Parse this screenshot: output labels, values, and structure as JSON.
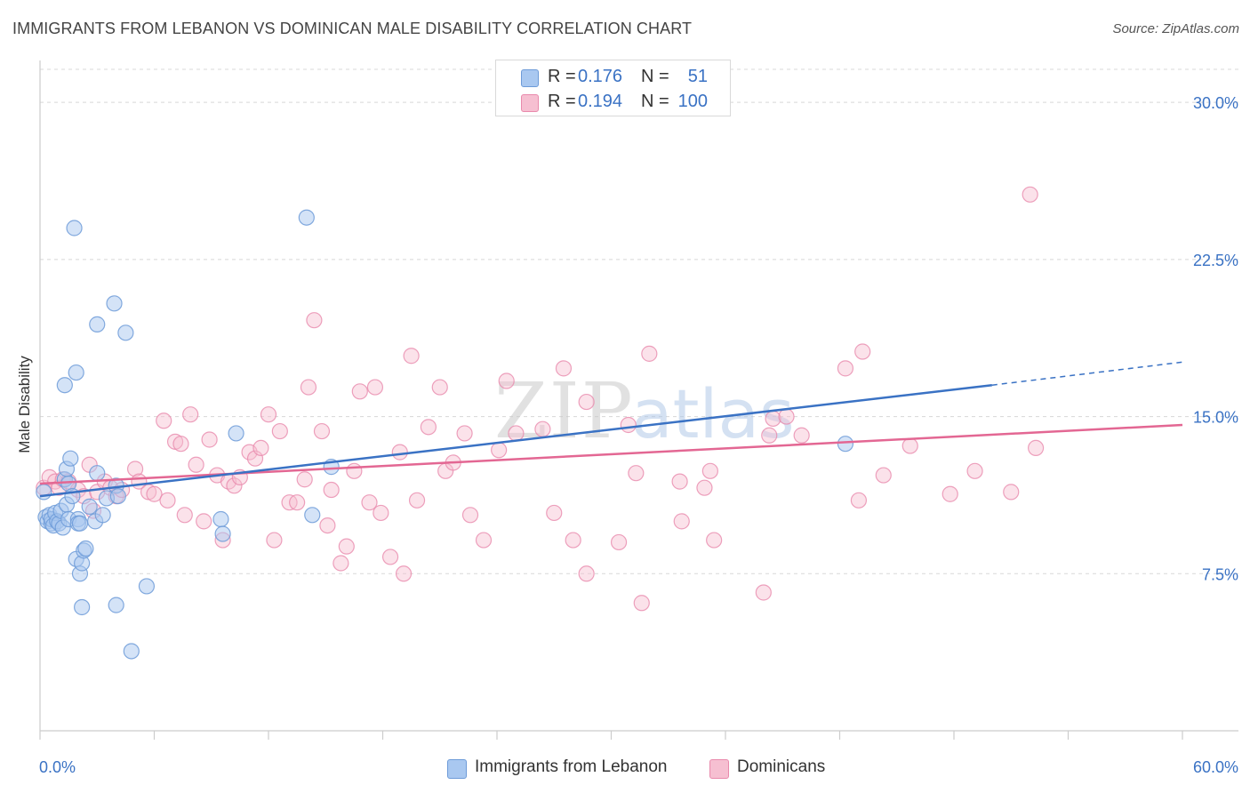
{
  "title": "IMMIGRANTS FROM LEBANON VS DOMINICAN MALE DISABILITY CORRELATION CHART",
  "source": "Source: ZipAtlas.com",
  "watermark": {
    "zip": "ZIP",
    "atlas": "atlas"
  },
  "legend": {
    "rows": [
      {
        "r_label": "R =",
        "r_value": "0.176",
        "n_label": "N =",
        "n_value": "51"
      },
      {
        "r_label": "R =",
        "r_value": "0.194",
        "n_label": "N =",
        "n_value": "100"
      }
    ]
  },
  "bottom_legend": {
    "series1": "Immigrants from Lebanon",
    "series2": "Dominicans"
  },
  "colors": {
    "blue_fill": "#a9c8f0",
    "blue_stroke": "#6d9bd8",
    "blue_line": "#3a72c4",
    "pink_fill": "#f6bfd1",
    "pink_stroke": "#e98aac",
    "pink_line": "#e36793",
    "axis_label": "#3a72c4",
    "grid": "#d8d8d8"
  },
  "chart_data": {
    "type": "scatter",
    "title": "IMMIGRANTS FROM LEBANON VS DOMINICAN MALE DISABILITY CORRELATION CHART",
    "xlabel": "",
    "ylabel": "Male Disability",
    "xlim": [
      0,
      60
    ],
    "ylim": [
      0,
      32
    ],
    "x_tick_labels": [
      "0.0%",
      "60.0%"
    ],
    "y_ticks": [
      7.5,
      15.0,
      22.5,
      30.0
    ],
    "y_tick_labels": [
      "7.5%",
      "15.0%",
      "22.5%",
      "30.0%"
    ],
    "grid": true,
    "legend_position": "top-center",
    "series": [
      {
        "name": "Immigrants from Lebanon",
        "r": 0.176,
        "n": 51,
        "trend": {
          "x_solid": [
            0,
            50
          ],
          "y_solid": [
            11.2,
            16.5
          ],
          "x_dashed": [
            50,
            60
          ],
          "y_dashed": [
            16.5,
            17.6
          ]
        },
        "points": [
          [
            0.2,
            11.4
          ],
          [
            0.3,
            10.2
          ],
          [
            0.4,
            10.0
          ],
          [
            0.5,
            10.3
          ],
          [
            0.6,
            9.9
          ],
          [
            0.6,
            10.1
          ],
          [
            0.7,
            9.8
          ],
          [
            0.8,
            10.4
          ],
          [
            0.9,
            10.0
          ],
          [
            1.0,
            9.9
          ],
          [
            1.1,
            10.5
          ],
          [
            1.2,
            9.7
          ],
          [
            1.3,
            12.0
          ],
          [
            1.4,
            10.8
          ],
          [
            1.5,
            10.1
          ],
          [
            1.3,
            16.5
          ],
          [
            1.4,
            12.5
          ],
          [
            1.5,
            11.8
          ],
          [
            1.6,
            13.0
          ],
          [
            1.7,
            11.2
          ],
          [
            1.8,
            24.0
          ],
          [
            1.9,
            17.1
          ],
          [
            2.0,
            10.1
          ],
          [
            2.0,
            9.9
          ],
          [
            1.9,
            8.2
          ],
          [
            2.1,
            7.5
          ],
          [
            2.2,
            8.0
          ],
          [
            2.3,
            8.6
          ],
          [
            2.4,
            8.7
          ],
          [
            2.2,
            5.9
          ],
          [
            2.6,
            10.7
          ],
          [
            2.9,
            10.0
          ],
          [
            3.0,
            12.3
          ],
          [
            3.0,
            19.4
          ],
          [
            3.3,
            10.3
          ],
          [
            3.5,
            11.1
          ],
          [
            3.9,
            20.4
          ],
          [
            4.0,
            6.0
          ],
          [
            4.0,
            11.7
          ],
          [
            4.1,
            11.2
          ],
          [
            4.5,
            19.0
          ],
          [
            4.8,
            3.8
          ],
          [
            5.6,
            6.9
          ],
          [
            9.5,
            10.1
          ],
          [
            9.6,
            9.4
          ],
          [
            10.3,
            14.2
          ],
          [
            14.0,
            24.5
          ],
          [
            14.3,
            10.3
          ],
          [
            15.3,
            12.6
          ],
          [
            42.3,
            13.7
          ],
          [
            2.1,
            9.9
          ]
        ]
      },
      {
        "name": "Dominicans",
        "r": 0.194,
        "n": 100,
        "trend": {
          "x_solid": [
            0,
            60
          ],
          "y_solid": [
            11.8,
            14.6
          ]
        },
        "points": [
          [
            0.2,
            11.6
          ],
          [
            0.5,
            12.1
          ],
          [
            0.8,
            11.9
          ],
          [
            1.0,
            11.6
          ],
          [
            1.2,
            12.0
          ],
          [
            1.5,
            11.9
          ],
          [
            2.0,
            11.5
          ],
          [
            2.3,
            11.2
          ],
          [
            2.6,
            12.7
          ],
          [
            2.8,
            10.5
          ],
          [
            3.0,
            11.4
          ],
          [
            3.4,
            11.9
          ],
          [
            3.7,
            11.6
          ],
          [
            4.0,
            11.2
          ],
          [
            4.3,
            11.5
          ],
          [
            5.0,
            12.5
          ],
          [
            5.2,
            11.9
          ],
          [
            5.7,
            11.4
          ],
          [
            6.0,
            11.3
          ],
          [
            6.5,
            14.8
          ],
          [
            6.7,
            11.0
          ],
          [
            7.1,
            13.8
          ],
          [
            7.4,
            13.7
          ],
          [
            7.6,
            10.3
          ],
          [
            7.9,
            15.1
          ],
          [
            8.2,
            12.7
          ],
          [
            8.6,
            10.0
          ],
          [
            8.9,
            13.9
          ],
          [
            9.3,
            12.2
          ],
          [
            9.6,
            9.1
          ],
          [
            9.9,
            11.9
          ],
          [
            10.2,
            11.7
          ],
          [
            10.5,
            12.1
          ],
          [
            11.0,
            13.3
          ],
          [
            11.3,
            13.0
          ],
          [
            11.6,
            13.5
          ],
          [
            12.0,
            15.1
          ],
          [
            12.3,
            9.1
          ],
          [
            12.6,
            14.3
          ],
          [
            13.1,
            10.9
          ],
          [
            13.5,
            10.9
          ],
          [
            13.9,
            12.0
          ],
          [
            14.1,
            16.4
          ],
          [
            14.4,
            19.6
          ],
          [
            14.8,
            14.3
          ],
          [
            15.1,
            9.8
          ],
          [
            15.3,
            11.5
          ],
          [
            15.8,
            8.0
          ],
          [
            16.1,
            8.8
          ],
          [
            16.5,
            12.4
          ],
          [
            16.8,
            16.2
          ],
          [
            17.3,
            10.9
          ],
          [
            17.6,
            16.4
          ],
          [
            17.9,
            10.4
          ],
          [
            18.4,
            8.3
          ],
          [
            18.9,
            13.3
          ],
          [
            19.1,
            7.5
          ],
          [
            19.5,
            17.9
          ],
          [
            19.8,
            11.0
          ],
          [
            20.4,
            14.5
          ],
          [
            21.0,
            16.4
          ],
          [
            21.3,
            12.4
          ],
          [
            21.7,
            12.8
          ],
          [
            22.3,
            14.2
          ],
          [
            22.6,
            10.3
          ],
          [
            23.3,
            9.1
          ],
          [
            24.1,
            13.4
          ],
          [
            24.5,
            16.7
          ],
          [
            25.0,
            14.2
          ],
          [
            26.4,
            14.4
          ],
          [
            27.0,
            10.4
          ],
          [
            27.5,
            17.3
          ],
          [
            28.0,
            9.1
          ],
          [
            28.7,
            7.5
          ],
          [
            28.7,
            15.7
          ],
          [
            30.4,
            9.0
          ],
          [
            30.9,
            14.6
          ],
          [
            31.3,
            12.3
          ],
          [
            31.6,
            6.1
          ],
          [
            32.0,
            18.0
          ],
          [
            33.6,
            11.9
          ],
          [
            33.7,
            10.0
          ],
          [
            34.9,
            11.6
          ],
          [
            35.2,
            12.4
          ],
          [
            35.4,
            9.1
          ],
          [
            38.0,
            6.6
          ],
          [
            38.3,
            14.1
          ],
          [
            38.5,
            14.9
          ],
          [
            39.2,
            15.0
          ],
          [
            40.0,
            14.1
          ],
          [
            42.3,
            17.3
          ],
          [
            43.0,
            11.0
          ],
          [
            43.2,
            18.1
          ],
          [
            44.3,
            12.2
          ],
          [
            45.7,
            13.6
          ],
          [
            47.8,
            11.3
          ],
          [
            49.1,
            12.4
          ],
          [
            51.0,
            11.4
          ],
          [
            52.0,
            25.6
          ],
          [
            52.3,
            13.5
          ]
        ]
      }
    ]
  }
}
